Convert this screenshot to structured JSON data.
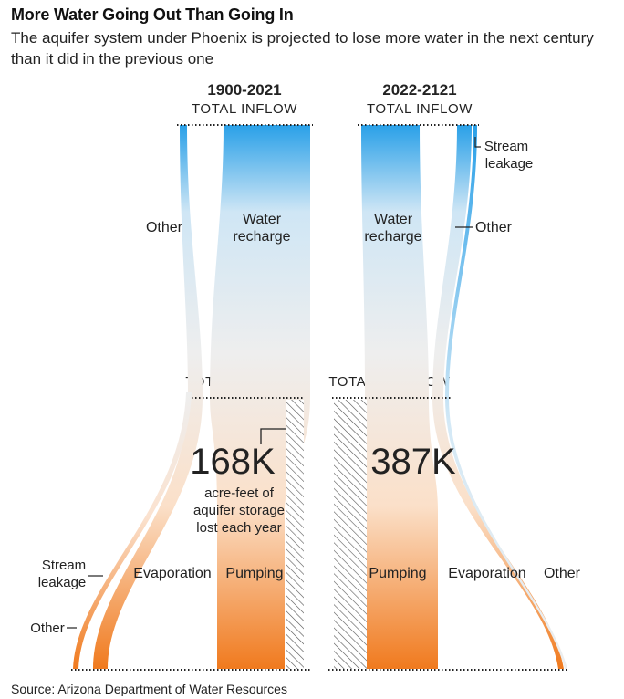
{
  "title": "More Water Going Out Than Going In",
  "subtitle": "The aquifer system under Phoenix is projected to lose more water in the next century than it did in the previous one",
  "source": "Source: Arizona Department of Water Resources",
  "colors": {
    "inflow": "#29a0e8",
    "outflow": "#f07a1e",
    "flow_mid": "#eeeeee",
    "hatch": "#555555"
  },
  "chart_data": {
    "type": "sankey",
    "title": "More Water Going Out Than Going In",
    "periods": [
      {
        "label": "1900-2021",
        "inflow_title": "TOTAL INFLOW",
        "outflow_title": "TOTAL OUTFLOW",
        "storage_lost": "168K",
        "storage_caption": "acre-feet of aquifer storage lost each year",
        "inflows": [
          {
            "label": "Other",
            "share": 0.06
          },
          {
            "label": "Water recharge",
            "share": 0.94
          }
        ],
        "outflows": [
          {
            "label": "Other",
            "share": 0.02
          },
          {
            "label": "Stream leakage",
            "share": 0.05
          },
          {
            "label": "Evaporation",
            "share": 0.02
          },
          {
            "label": "Pumping",
            "share": 0.68
          },
          {
            "label": "Storage lost",
            "share": 0.23
          }
        ]
      },
      {
        "label": "2022-2121",
        "inflow_title": "TOTAL INFLOW",
        "outflow_title": "TOTAL OUTFLOW",
        "storage_lost": "387K",
        "inflows": [
          {
            "label": "Water recharge",
            "share": 0.62
          },
          {
            "label": "Other",
            "share": 0.15
          },
          {
            "label": "Stream leakage",
            "share": 0.03
          }
        ],
        "outflows": [
          {
            "label": "Storage lost",
            "share": 0.32
          },
          {
            "label": "Pumping",
            "share": 0.66
          },
          {
            "label": "Evaporation",
            "share": 0.01
          },
          {
            "label": "Other",
            "share": 0.01
          }
        ]
      }
    ]
  }
}
